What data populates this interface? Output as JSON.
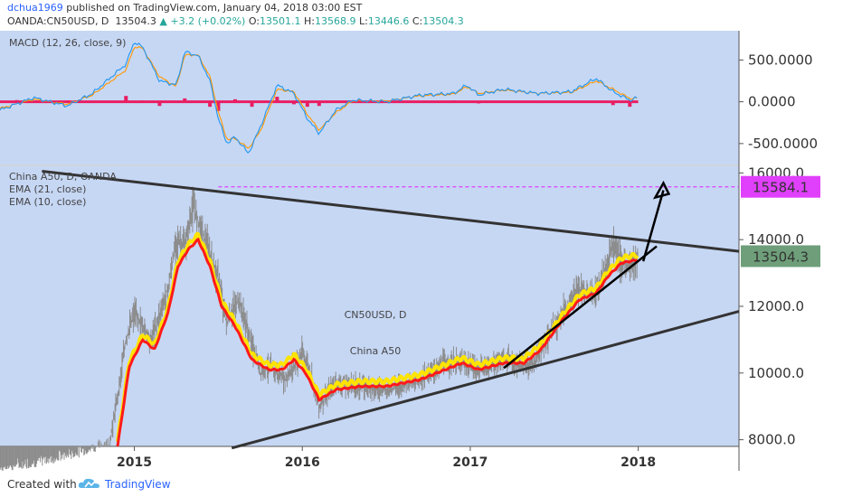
{
  "header": {
    "user": "dchua1969",
    "published": " published on TradingView.com, January 04, 2018 03:00 EST",
    "symbol": "OANDA:CN50USD, D",
    "price": "13504.3",
    "arrow": "▲",
    "change": "+3.2 (+0.02%)",
    "o_label": "O:",
    "o_value": "13501.1",
    "h_label": "H:",
    "h_value": "13568.9",
    "l_label": "L:",
    "l_value": "13446.6",
    "c_label": "C:",
    "c_value": "13504.3"
  },
  "footer": {
    "created_with": "Created with",
    "brand": "TradingView"
  },
  "colors": {
    "pane_bg": "#c6d7f4",
    "candles": "#8c8c8c",
    "ema21": "#ff1a1a",
    "ema10": "#ffe400",
    "macd": "#2196f3",
    "signal": "#ff9800",
    "histogram": "#e91e63",
    "target": "#e040fb",
    "last_price": "#6e9f7a",
    "trendline": "#333333"
  },
  "chart_data": [
    {
      "type": "line",
      "legend": "MACD (12, 26, close, 9)",
      "y_ticks": [
        "500.0000",
        "0.0000",
        "-500.0000"
      ],
      "ylim": [
        -750,
        850
      ],
      "x_span": [
        2014.2,
        2018.6
      ],
      "series": [
        {
          "role": "macd",
          "x": [
            2014.2,
            2014.4,
            2014.6,
            2014.75,
            2014.95,
            2015.0,
            2015.05,
            2015.15,
            2015.25,
            2015.3,
            2015.38,
            2015.45,
            2015.5,
            2015.55,
            2015.6,
            2015.68,
            2015.75,
            2015.85,
            2015.95,
            2016.03,
            2016.1,
            2016.2,
            2016.3,
            2016.5,
            2016.7,
            2016.9,
            2016.98,
            2017.05,
            2017.2,
            2017.4,
            2017.6,
            2017.75,
            2017.85,
            2017.95,
            2018.0
          ],
          "values": [
            -100,
            50,
            -50,
            100,
            450,
            720,
            650,
            250,
            200,
            600,
            550,
            250,
            -200,
            -500,
            -420,
            -620,
            -300,
            200,
            100,
            -200,
            -380,
            -100,
            20,
            0,
            80,
            100,
            200,
            80,
            150,
            100,
            120,
            280,
            120,
            20,
            50
          ]
        },
        {
          "role": "signal",
          "x": [
            2014.2,
            2014.4,
            2014.6,
            2014.75,
            2014.95,
            2015.0,
            2015.05,
            2015.15,
            2015.25,
            2015.3,
            2015.38,
            2015.45,
            2015.5,
            2015.55,
            2015.6,
            2015.68,
            2015.75,
            2015.85,
            2015.95,
            2016.03,
            2016.1,
            2016.2,
            2016.3,
            2016.5,
            2016.7,
            2016.9,
            2016.98,
            2017.05,
            2017.2,
            2017.4,
            2017.6,
            2017.75,
            2017.85,
            2017.95,
            2018.0
          ],
          "values": [
            -80,
            30,
            -30,
            80,
            380,
            660,
            640,
            300,
            180,
            560,
            560,
            300,
            -120,
            -450,
            -440,
            -560,
            -350,
            150,
            120,
            -150,
            -340,
            -130,
            10,
            10,
            70,
            90,
            180,
            100,
            140,
            100,
            110,
            250,
            150,
            40,
            40
          ]
        }
      ],
      "histogram": {
        "x": [
          2014.3,
          2014.6,
          2014.95,
          2015.05,
          2015.15,
          2015.3,
          2015.45,
          2015.5,
          2015.6,
          2015.7,
          2015.85,
          2015.95,
          2016.03,
          2016.1,
          2016.4,
          2016.9,
          2017.05,
          2017.5,
          2017.85,
          2017.95
        ],
        "values": [
          20,
          15,
          70,
          15,
          -50,
          40,
          -60,
          -110,
          30,
          -60,
          60,
          -30,
          -60,
          -50,
          10,
          15,
          -20,
          10,
          -40,
          -60
        ]
      }
    },
    {
      "type": "line",
      "legend": [
        "China A50, D, OANDA",
        "EMA (21, close)",
        "EMA (10, close)"
      ],
      "watermark": [
        "CN50USD, D",
        "China A50"
      ],
      "y_ticks": [
        "16000.0",
        "14000.0",
        "12000.0",
        "10000.0",
        "8000.0"
      ],
      "x_ticks": [
        "2015",
        "2016",
        "2017",
        "2018"
      ],
      "ylim": [
        7800,
        16200
      ],
      "x_span": [
        2014.2,
        2018.6
      ],
      "series": [
        {
          "role": "price",
          "x": [
            2014.2,
            2014.45,
            2014.7,
            2014.85,
            2014.9,
            2014.95,
            2015.0,
            2015.1,
            2015.2,
            2015.25,
            2015.3,
            2015.35,
            2015.42,
            2015.5,
            2015.55,
            2015.62,
            2015.68,
            2015.75,
            2015.8,
            2015.9,
            2016.0,
            2016.05,
            2016.1,
            2016.2,
            2016.35,
            2016.5,
            2016.7,
            2016.85,
            2016.95,
            2017.05,
            2017.2,
            2017.3,
            2017.38,
            2017.45,
            2017.55,
            2017.65,
            2017.75,
            2017.8,
            2017.85,
            2017.9,
            2017.95,
            2018.0
          ],
          "values": [
            7000,
            7200,
            7500,
            7800,
            9300,
            11000,
            11800,
            11000,
            12500,
            14000,
            13800,
            15000,
            14000,
            12800,
            11500,
            12200,
            11200,
            10000,
            10200,
            9800,
            10600,
            10000,
            9000,
            9700,
            9600,
            9500,
            9800,
            10300,
            10300,
            10100,
            10400,
            10200,
            10300,
            11000,
            11800,
            12500,
            12400,
            13000,
            13900,
            13300,
            13200,
            13504.3
          ]
        },
        {
          "role": "ema21",
          "x": [
            2014.9,
            2014.97,
            2015.05,
            2015.12,
            2015.2,
            2015.26,
            2015.32,
            2015.38,
            2015.45,
            2015.52,
            2015.6,
            2015.7,
            2015.8,
            2015.88,
            2015.95,
            2016.02,
            2016.1,
            2016.2,
            2016.35,
            2016.5,
            2016.7,
            2016.85,
            2016.95,
            2017.05,
            2017.2,
            2017.32,
            2017.42,
            2017.55,
            2017.65,
            2017.75,
            2017.82,
            2017.9,
            2018.0
          ],
          "values": [
            7800,
            10200,
            11000,
            10700,
            11800,
            13200,
            13700,
            14000,
            13200,
            12000,
            11400,
            10400,
            10100,
            10100,
            10400,
            10000,
            9200,
            9500,
            9600,
            9600,
            9800,
            10100,
            10300,
            10100,
            10300,
            10300,
            10700,
            11600,
            12200,
            12400,
            12900,
            13300,
            13400
          ]
        }
      ],
      "annotations": {
        "target_price": 15584.1,
        "last_price": 13504.3
      }
    }
  ]
}
